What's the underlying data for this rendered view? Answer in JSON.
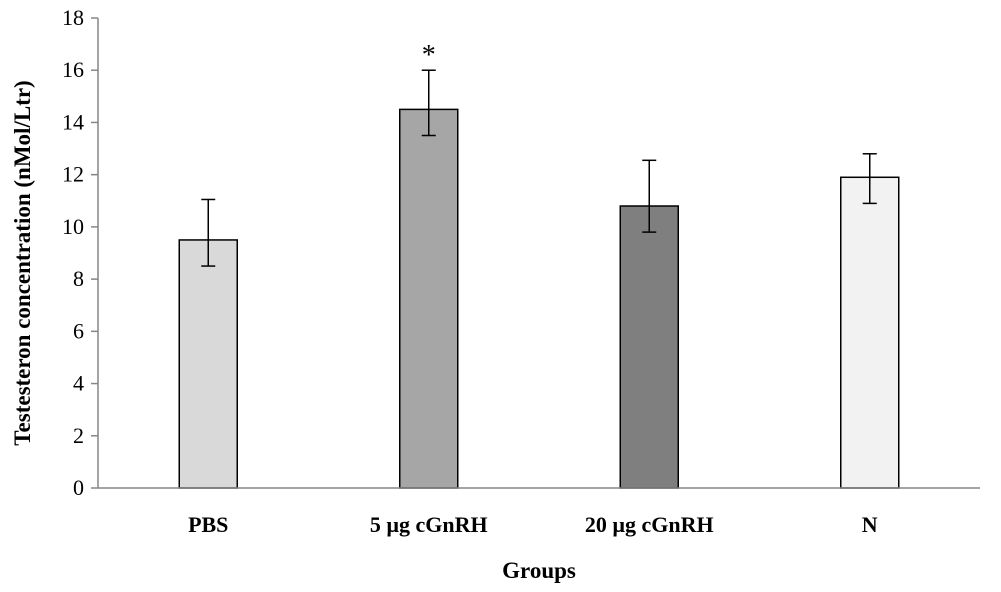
{
  "chart_data": {
    "type": "bar",
    "categories": [
      "PBS",
      "5 µg cGnRH",
      "20 µg cGnRH",
      "N"
    ],
    "values": [
      9.5,
      14.5,
      10.8,
      11.9
    ],
    "error_low": [
      8.5,
      13.5,
      9.8,
      10.9
    ],
    "error_high": [
      11.05,
      16.0,
      12.55,
      12.8
    ],
    "bar_colors": [
      "#d9d9d9",
      "#a6a6a6",
      "#7f7f7f",
      "#f2f2f2"
    ],
    "annotations": [
      "",
      "*",
      "",
      ""
    ],
    "xlabel": "Groups",
    "ylabel": "Testesteron concentration  (nMol/Ltr)",
    "ylim": [
      0,
      18
    ],
    "yticks": [
      0,
      2,
      4,
      6,
      8,
      10,
      12,
      14,
      16,
      18
    ],
    "grid": false
  }
}
